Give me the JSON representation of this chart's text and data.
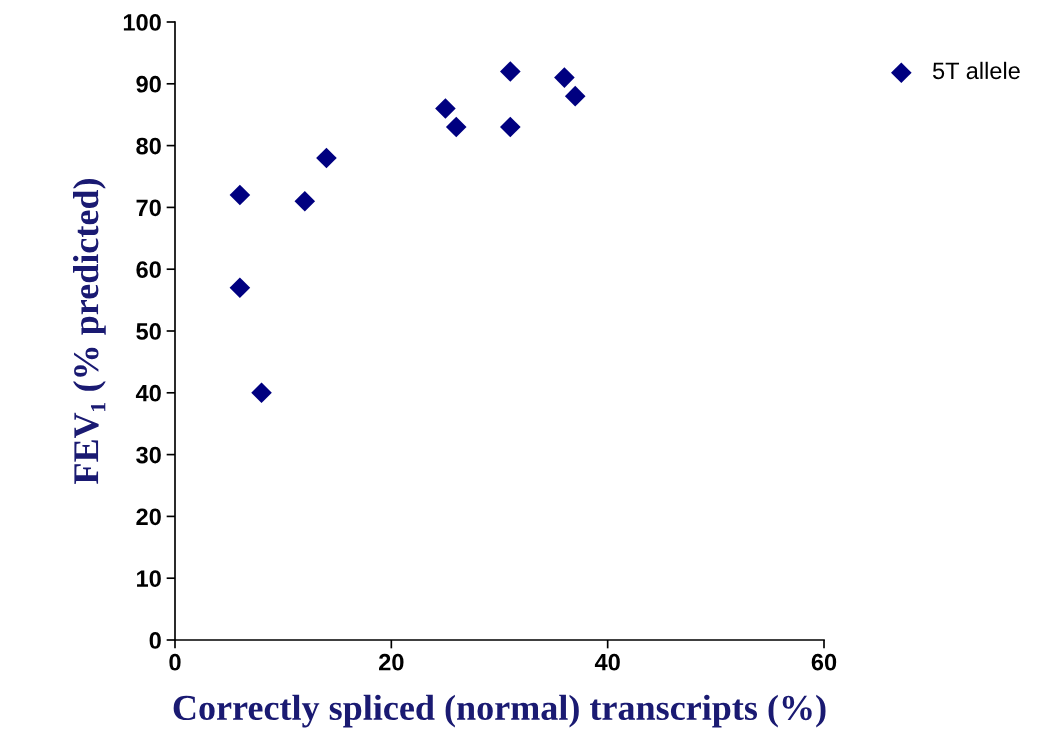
{
  "chart_data": {
    "type": "scatter",
    "xlabel": "Correctly spliced (normal) transcripts (%)",
    "ylabel": "FEV₁ (% predicted)",
    "series": [
      {
        "name": "5T allele",
        "color": "#000080",
        "x": [
          6,
          6,
          8,
          12,
          14,
          25,
          26,
          31,
          31,
          36,
          37
        ],
        "values": [
          72,
          57,
          40,
          71,
          78,
          86,
          83,
          92,
          83,
          91,
          88
        ]
      }
    ],
    "xlim": [
      0,
      60
    ],
    "xticks": [
      0,
      20,
      40,
      60
    ],
    "ylim": [
      0,
      100
    ],
    "yticks": [
      0,
      10,
      20,
      30,
      40,
      50,
      60,
      70,
      80,
      90,
      100
    ],
    "marker": "diamond",
    "grid": false,
    "legend": "top right"
  }
}
